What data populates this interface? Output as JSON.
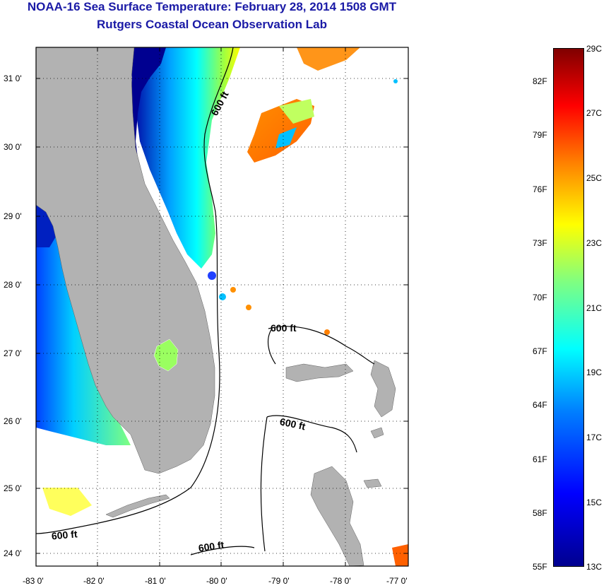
{
  "header": {
    "title": "NOAA-16 Sea Surface Temperature:  February 28, 2014 1508 GMT",
    "subtitle": "Rutgers Coastal Ocean Observation Lab"
  },
  "map": {
    "lat_labels": [
      "31 0'",
      "30 0'",
      "29 0'",
      "28 0'",
      "27 0'",
      "26 0'",
      "25 0'",
      "24 0'"
    ],
    "lon_labels": [
      "-83 0'",
      "-82 0'",
      "-81 0'",
      "-80 0'",
      "-79 0'",
      "-78 0'",
      "-77 0'"
    ],
    "contour_labels": [
      "600 ft",
      "600 ft",
      "600 ft",
      "600 ft",
      "600 ft"
    ],
    "land_color": "#b2b2b2"
  },
  "colorbar": {
    "celsius": [
      "29C",
      "27C",
      "25C",
      "23C",
      "21C",
      "19C",
      "17C",
      "15C",
      "13C"
    ],
    "fahrenheit": [
      "82F",
      "79F",
      "76F",
      "73F",
      "70F",
      "67F",
      "64F",
      "61F",
      "58F",
      "55F"
    ]
  }
}
